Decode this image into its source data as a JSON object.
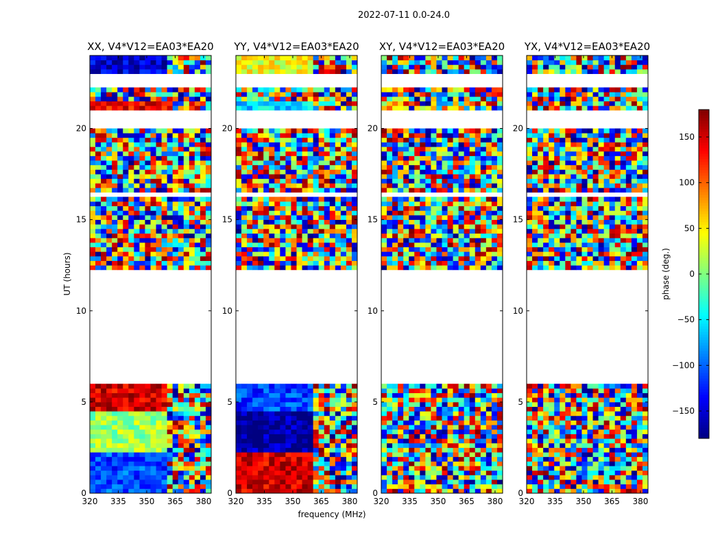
{
  "chart_data": {
    "type": "heatmap",
    "suptitle": "2022-07-11 0.0-24.0",
    "xlabel": "frequency (MHz)",
    "ylabel": "UT (hours)",
    "xlim": [
      320,
      384
    ],
    "ylim": [
      0,
      24
    ],
    "xticks": [
      320,
      335,
      350,
      365,
      380
    ],
    "yticks": [
      0,
      5,
      10,
      15,
      20
    ],
    "colorbar": {
      "label": "phase (deg.)",
      "range": [
        -180,
        180
      ],
      "ticks": [
        -150,
        -100,
        -50,
        0,
        50,
        100,
        150
      ],
      "colormap": "jet"
    },
    "data_gaps_ut_hours": [
      [
        6.0,
        12.2
      ],
      [
        16.3,
        16.6
      ],
      [
        19.9,
        20.0
      ],
      [
        20.1,
        21.0
      ],
      [
        22.3,
        23.0
      ]
    ],
    "panels": [
      {
        "title": "XX, V4*V12=EA03*EA20",
        "pol": "XX"
      },
      {
        "title": "YY, V4*V12=EA03*EA20",
        "pol": "YY"
      },
      {
        "title": "XY, V4*V12=EA03*EA20",
        "pol": "XY"
      },
      {
        "title": "YX, V4*V12=EA03*EA20",
        "pol": "YX"
      }
    ]
  }
}
